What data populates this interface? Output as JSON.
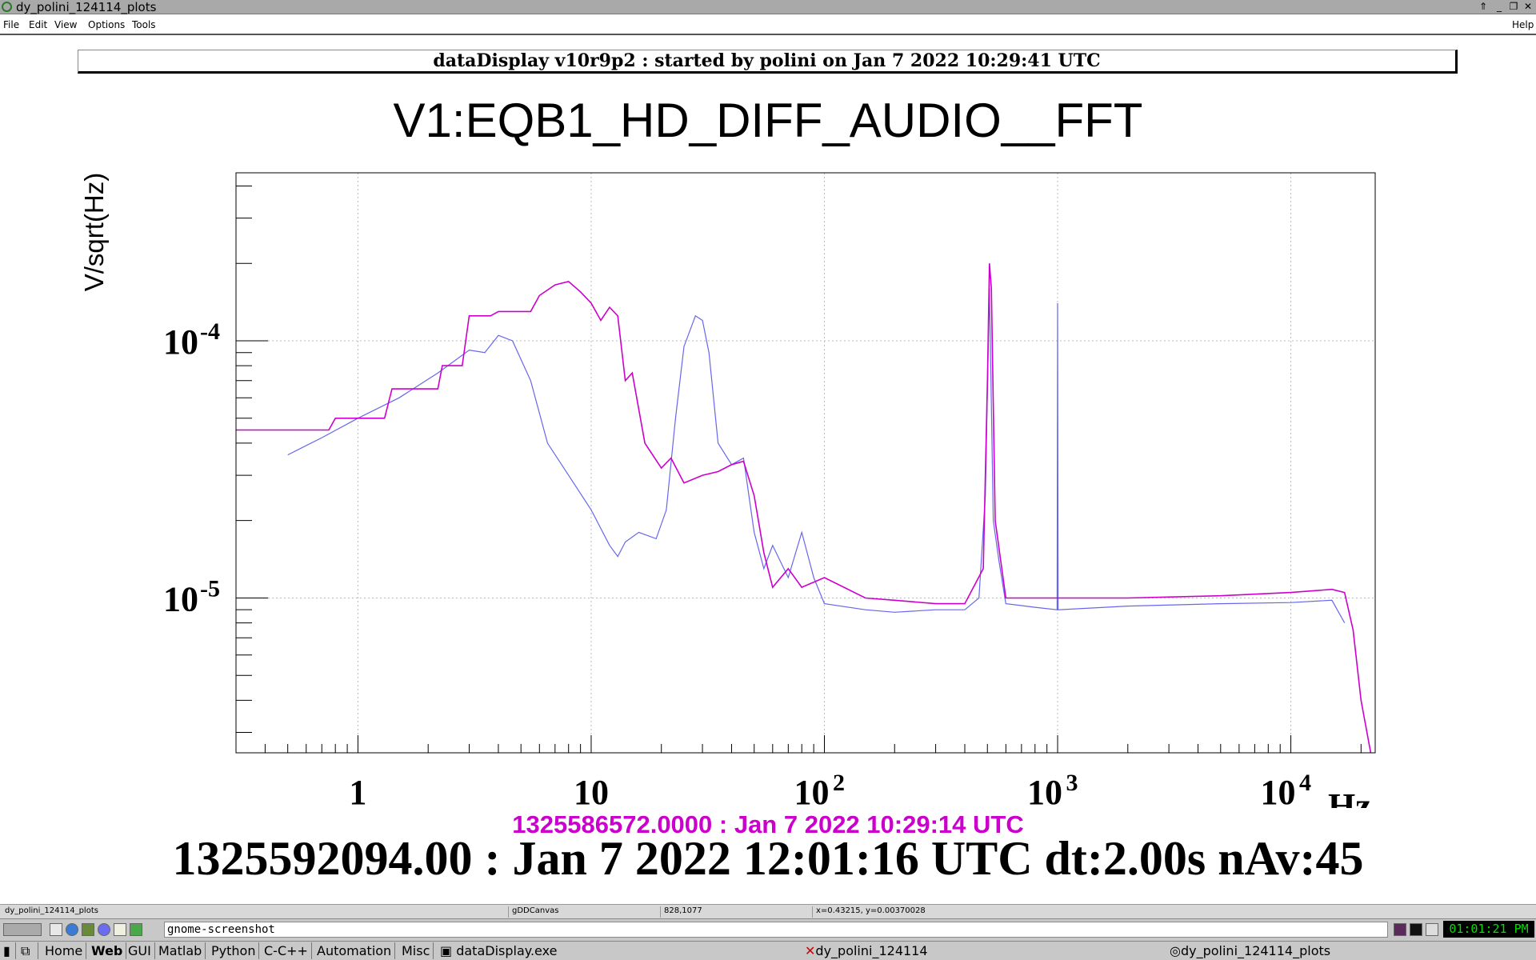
{
  "window": {
    "title": "dy_polini_124114_plots"
  },
  "menu": {
    "items": [
      "File",
      "Edit",
      "View",
      "Options",
      "Tools"
    ],
    "help": "Help"
  },
  "banner": "dataDisplay v10r9p2 : started by polini on Jan  7 2022 10:29:41 UTC",
  "chart_data": {
    "type": "line",
    "title": "V1:EQB1_HD_DIFF_AUDIO__FFT",
    "ylabel": "V/sqrt(Hz)",
    "xlabel": "Hz",
    "xscale": "log",
    "yscale": "log",
    "xlim": [
      0.3,
      23000
    ],
    "ylim": [
      2.5e-06,
      0.00045
    ],
    "grid": true,
    "xticks": [
      {
        "base": "1",
        "exp": ""
      },
      {
        "base": "10",
        "exp": ""
      },
      {
        "base": "10",
        "exp": "2"
      },
      {
        "base": "10",
        "exp": "3"
      },
      {
        "base": "10",
        "exp": "4"
      }
    ],
    "yticks": [
      {
        "base": "10",
        "exp": "-4"
      },
      {
        "base": "10",
        "exp": "-5"
      }
    ],
    "series": [
      {
        "color": "#6666ee",
        "points": [
          [
            0.5,
            3.6e-05
          ],
          [
            0.7,
            4.2e-05
          ],
          [
            1.0,
            5e-05
          ],
          [
            1.5,
            6e-05
          ],
          [
            2.2,
            7.5e-05
          ],
          [
            3.0,
            9.2e-05
          ],
          [
            3.5,
            9e-05
          ],
          [
            4.0,
            0.000105
          ],
          [
            4.6,
            0.0001
          ],
          [
            5.5,
            7e-05
          ],
          [
            6.5,
            4e-05
          ],
          [
            8.0,
            3e-05
          ],
          [
            10.0,
            2.2e-05
          ],
          [
            12.0,
            1.6e-05
          ],
          [
            13.0,
            1.45e-05
          ],
          [
            14.0,
            1.65e-05
          ],
          [
            16.0,
            1.8e-05
          ],
          [
            19.0,
            1.7e-05
          ],
          [
            21.0,
            2.2e-05
          ],
          [
            23.0,
            5e-05
          ],
          [
            25.0,
            9.5e-05
          ],
          [
            28.0,
            0.000125
          ],
          [
            30.0,
            0.00012
          ],
          [
            32.0,
            9e-05
          ],
          [
            35.0,
            4e-05
          ],
          [
            40.0,
            3.3e-05
          ],
          [
            45.0,
            3.5e-05
          ],
          [
            50.0,
            1.8e-05
          ],
          [
            55.0,
            1.3e-05
          ],
          [
            60.0,
            1.6e-05
          ],
          [
            70.0,
            1.2e-05
          ],
          [
            80.0,
            1.8e-05
          ],
          [
            90.0,
            1.2e-05
          ],
          [
            100.0,
            9.5e-06
          ],
          [
            150.0,
            9e-06
          ],
          [
            200.0,
            8.8e-06
          ],
          [
            300.0,
            9e-06
          ],
          [
            400.0,
            9e-06
          ],
          [
            460.0,
            1e-05
          ],
          [
            490.0,
            2.5e-05
          ],
          [
            510.0,
            0.00016
          ],
          [
            530.0,
            2e-05
          ],
          [
            560.0,
            1.4e-05
          ],
          [
            600.0,
            9.5e-06
          ],
          [
            800.0,
            9.2e-06
          ],
          [
            995.0,
            9e-06
          ],
          [
            1000.0,
            0.00014
          ],
          [
            1005.0,
            9e-06
          ],
          [
            2000.0,
            9.3e-06
          ],
          [
            5000.0,
            9.5e-06
          ],
          [
            10000.0,
            9.6e-06
          ],
          [
            15000.0,
            9.8e-06
          ],
          [
            17000.0,
            8e-06
          ]
        ]
      },
      {
        "color": "#cc00cc",
        "points": [
          [
            0.3,
            4.5e-05
          ],
          [
            0.75,
            4.5e-05
          ],
          [
            0.8,
            5e-05
          ],
          [
            1.3,
            5e-05
          ],
          [
            1.4,
            6.5e-05
          ],
          [
            2.2,
            6.5e-05
          ],
          [
            2.3,
            8e-05
          ],
          [
            2.8,
            8e-05
          ],
          [
            3.0,
            0.000125
          ],
          [
            3.7,
            0.000125
          ],
          [
            4.0,
            0.00013
          ],
          [
            5.5,
            0.00013
          ],
          [
            6.0,
            0.00015
          ],
          [
            7.0,
            0.000165
          ],
          [
            8.0,
            0.00017
          ],
          [
            9.0,
            0.000155
          ],
          [
            10.0,
            0.00014
          ],
          [
            11.0,
            0.00012
          ],
          [
            12.0,
            0.000135
          ],
          [
            13.0,
            0.000125
          ],
          [
            14.0,
            7e-05
          ],
          [
            15.0,
            7.5e-05
          ],
          [
            17.0,
            4e-05
          ],
          [
            20.0,
            3.2e-05
          ],
          [
            22.0,
            3.5e-05
          ],
          [
            25.0,
            2.8e-05
          ],
          [
            30.0,
            3e-05
          ],
          [
            35.0,
            3.1e-05
          ],
          [
            40.0,
            3.3e-05
          ],
          [
            45.0,
            3.4e-05
          ],
          [
            50.0,
            2.5e-05
          ],
          [
            55.0,
            1.5e-05
          ],
          [
            60.0,
            1.1e-05
          ],
          [
            70.0,
            1.3e-05
          ],
          [
            80.0,
            1.1e-05
          ],
          [
            100.0,
            1.2e-05
          ],
          [
            150.0,
            1e-05
          ],
          [
            200.0,
            9.8e-06
          ],
          [
            300.0,
            9.5e-06
          ],
          [
            400.0,
            9.5e-06
          ],
          [
            480.0,
            1.3e-05
          ],
          [
            500.0,
            7e-05
          ],
          [
            510.0,
            0.0002
          ],
          [
            520.0,
            0.00016
          ],
          [
            540.0,
            2e-05
          ],
          [
            600.0,
            1e-05
          ],
          [
            1000.0,
            1e-05
          ],
          [
            2000.0,
            1e-05
          ],
          [
            5000.0,
            1.02e-05
          ],
          [
            10000.0,
            1.05e-05
          ],
          [
            15000.0,
            1.08e-05
          ],
          [
            17000.0,
            1.05e-05
          ],
          [
            18500.0,
            7.5e-06
          ],
          [
            20000.0,
            4e-06
          ],
          [
            22000.0,
            2.5e-06
          ]
        ]
      }
    ]
  },
  "timestamps": {
    "reference": "1325586572.0000 : Jan  7 2022 10:29:14 UTC",
    "current": "1325592094.00 : Jan  7 2022 12:01:16 UTC dt:2.00s nAv:45"
  },
  "statusbar": {
    "name": "dy_polini_124114_plots",
    "canvas": "gDDCanvas",
    "pixel": "828,1077",
    "coords": "x=0.43215, y=0.00370028"
  },
  "commandline": {
    "value": "gnome-screenshot"
  },
  "clock": "01:01:21 PM",
  "taskbar": {
    "buttons": [
      "Home",
      "Web",
      "GUI",
      "Matlab",
      "Python",
      "C-C++",
      "Automation",
      "Misc"
    ],
    "windows": [
      "dataDisplay.exe",
      "dy_polini_124114",
      "dy_polini_124114_plots"
    ]
  },
  "colors": {
    "series_blue": "#6666ee",
    "series_magenta": "#cc00cc",
    "reference_timestamp": "#cc00cc",
    "clock_text": "#00e000"
  }
}
